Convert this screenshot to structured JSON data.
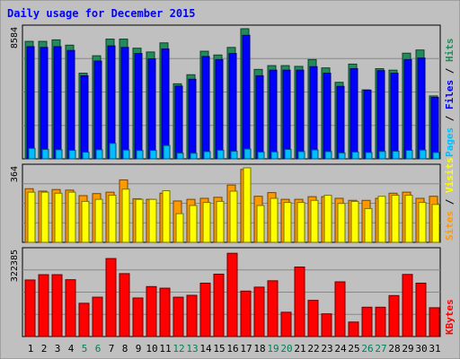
{
  "chart_data": {
    "type": "bar",
    "title": "Daily usage for December 2015",
    "categories": [
      "1",
      "2",
      "3",
      "4",
      "5",
      "6",
      "7",
      "8",
      "9",
      "10",
      "11",
      "12",
      "13",
      "14",
      "15",
      "16",
      "17",
      "18",
      "19",
      "20",
      "21",
      "22",
      "23",
      "24",
      "25",
      "26",
      "27",
      "28",
      "29",
      "30",
      "31"
    ],
    "weekend_days": [
      "5",
      "6",
      "12",
      "13",
      "19",
      "20",
      "26",
      "27"
    ],
    "panels": [
      {
        "id": "top",
        "ymax_label": "8584",
        "ymax": 8584,
        "series": [
          {
            "name": "Hits",
            "color": "#218c5a",
            "values": [
              7750,
              7750,
              7850,
              7500,
              5650,
              6800,
              7900,
              7900,
              7300,
              7050,
              7650,
              4950,
              5550,
              7100,
              6850,
              7350,
              8584,
              5900,
              6150,
              6150,
              6100,
              6550,
              6000,
              5050,
              6250,
              4550,
              5950,
              5850,
              6970,
              7180,
              4150
            ]
          },
          {
            "name": "Files",
            "color": "#0000ff",
            "values": [
              7400,
              7350,
              7400,
              7150,
              5480,
              6450,
              7450,
              7350,
              6950,
              6600,
              7250,
              4800,
              5250,
              6750,
              6550,
              6950,
              8150,
              5480,
              5850,
              5850,
              5850,
              6080,
              5650,
              4780,
              5950,
              4530,
              5820,
              5650,
              6550,
              6650,
              4050
            ]
          },
          {
            "name": "Pages",
            "color": "#00bfff",
            "values": [
              690,
              620,
              600,
              560,
              440,
              600,
              1020,
              580,
              550,
              560,
              880,
              380,
              370,
              480,
              570,
              500,
              650,
              450,
              460,
              620,
              480,
              590,
              480,
              390,
              450,
              420,
              490,
              500,
              560,
              580,
              420
            ]
          }
        ]
      },
      {
        "id": "middle",
        "ymax_label": "364",
        "ymax": 364,
        "series": [
          {
            "name": "Visits",
            "color": "#ffff00",
            "values": [
              245,
              245,
              240,
              245,
              200,
              210,
              230,
              260,
              210,
              210,
              252,
              140,
              180,
              195,
              200,
              250,
              364,
              180,
              215,
              195,
              195,
              205,
              230,
              190,
              200,
              165,
              225,
              230,
              230,
              195,
              185
            ]
          },
          {
            "name": "Sites",
            "color": "#ff9900",
            "values": [
              262,
              250,
              258,
              255,
              228,
              238,
              245,
              305,
              213,
              210,
              240,
              202,
              210,
              215,
              220,
              280,
              356,
              225,
              243,
              210,
              210,
              223,
              223,
              215,
              205,
              205,
              215,
              240,
              245,
              215,
              225
            ]
          }
        ]
      },
      {
        "id": "bottom",
        "ymax_label": "322385",
        "ymax": 322385,
        "series": [
          {
            "name": "KBytes",
            "color": "#ff0000",
            "values": [
              214000,
              234000,
              234000,
              215000,
              126000,
              149000,
              295000,
              238000,
              146000,
              189000,
              183000,
              149000,
              156000,
              202000,
              236000,
              315000,
              172000,
              187000,
              211000,
              92000,
              263000,
              137000,
              86000,
              207000,
              55000,
              111000,
              111000,
              155000,
              235000,
              202000,
              109000
            ]
          }
        ]
      }
    ],
    "legend_top": [
      "Pages",
      "/",
      "Files",
      "/",
      "Hits"
    ],
    "legend_middle": [
      "Sites",
      "/",
      "Visits"
    ],
    "legend_bottom": [
      "KBytes"
    ],
    "grid": true
  },
  "colors": {
    "background": "#c0c0c0",
    "title": "#0000ff",
    "day_label": "#000000",
    "weekend_label": "#00805c",
    "slash": "#000000",
    "gridline": "#888888"
  }
}
